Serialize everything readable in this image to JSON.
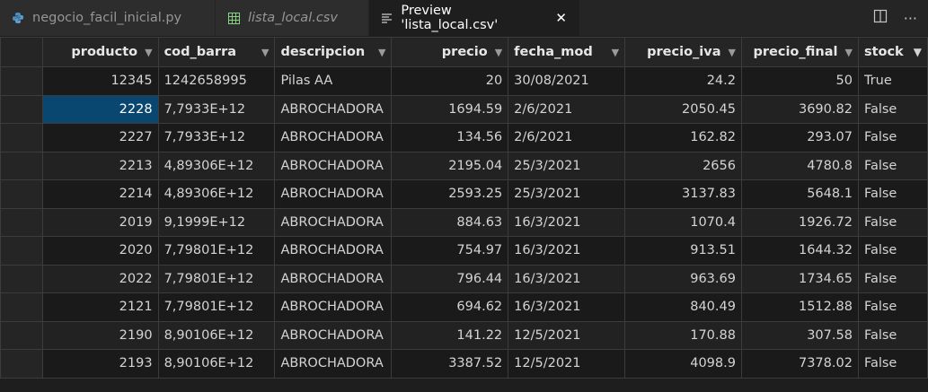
{
  "tabs": [
    {
      "label": "negocio_facil_inicial.py",
      "icon": "python-icon",
      "active": false,
      "italic": false
    },
    {
      "label": "lista_local.csv",
      "icon": "table-icon",
      "active": false,
      "italic": true
    },
    {
      "label": "Preview 'lista_local.csv'",
      "icon": "preview-icon",
      "active": true,
      "italic": false
    }
  ],
  "columns": [
    "producto",
    "cod_barra",
    "descripcion",
    "precio",
    "fecha_mod",
    "precio_iva",
    "precio_final",
    "stock"
  ],
  "rows": [
    [
      "12345",
      "1242658995",
      "Pilas AA",
      "20",
      "30/08/2021",
      "24.2",
      "50",
      "True"
    ],
    [
      "2228",
      "7,7933E+12",
      "ABROCHADORA",
      "1694.59",
      "2/6/2021",
      "2050.45",
      "3690.82",
      "False"
    ],
    [
      "2227",
      "7,7933E+12",
      "ABROCHADORA",
      "134.56",
      "2/6/2021",
      "162.82",
      "293.07",
      "False"
    ],
    [
      "2213",
      "4,89306E+12",
      "ABROCHADORA",
      "2195.04",
      "25/3/2021",
      "2656",
      "4780.8",
      "False"
    ],
    [
      "2214",
      "4,89306E+12",
      "ABROCHADORA",
      "2593.25",
      "25/3/2021",
      "3137.83",
      "5648.1",
      "False"
    ],
    [
      "2019",
      "9,1999E+12",
      "ABROCHADORA",
      "884.63",
      "16/3/2021",
      "1070.4",
      "1926.72",
      "False"
    ],
    [
      "2020",
      "7,79801E+12",
      "ABROCHADORA",
      "754.97",
      "16/3/2021",
      "913.51",
      "1644.32",
      "False"
    ],
    [
      "2022",
      "7,79801E+12",
      "ABROCHADORA",
      "796.44",
      "16/3/2021",
      "963.69",
      "1734.65",
      "False"
    ],
    [
      "2121",
      "7,79801E+12",
      "ABROCHADORA",
      "694.62",
      "16/3/2021",
      "840.49",
      "1512.88",
      "False"
    ],
    [
      "2190",
      "8,90106E+12",
      "ABROCHADORA",
      "141.22",
      "12/5/2021",
      "170.88",
      "307.58",
      "False"
    ],
    [
      "2193",
      "8,90106E+12",
      "ABROCHADORA",
      "3387.52",
      "12/5/2021",
      "4098.9",
      "7378.02",
      "False"
    ]
  ],
  "selected_cell": {
    "row": 1,
    "col": 0
  },
  "colors": {
    "accent": "#094771",
    "python": "#4b8bbe",
    "csv": "#89d185"
  }
}
